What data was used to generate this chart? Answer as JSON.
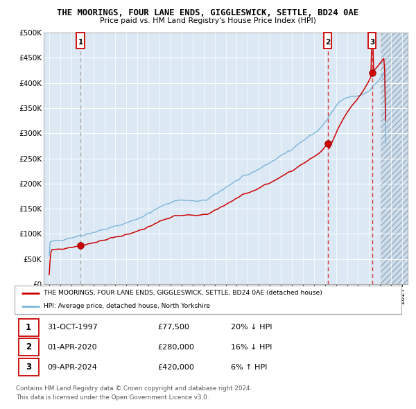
{
  "title": "THE MOORINGS, FOUR LANE ENDS, GIGGLESWICK, SETTLE, BD24 0AE",
  "subtitle": "Price paid vs. HM Land Registry's House Price Index (HPI)",
  "xlim": [
    1994.5,
    2027.5
  ],
  "ylim": [
    0,
    500000
  ],
  "yticks": [
    0,
    50000,
    100000,
    150000,
    200000,
    250000,
    300000,
    350000,
    400000,
    450000,
    500000
  ],
  "ytick_labels": [
    "£0",
    "£50K",
    "£100K",
    "£150K",
    "£200K",
    "£250K",
    "£300K",
    "£350K",
    "£400K",
    "£450K",
    "£500K"
  ],
  "hpi_color": "#7ab4d8",
  "price_color": "#cc0000",
  "bg_color": "#dce9f5",
  "grid_color": "#ffffff",
  "vline1_color": "#aaaaaa",
  "vline23_color": "#dd3333",
  "sale_years": [
    1997.833,
    2020.25,
    2024.27
  ],
  "sale_prices": [
    77500,
    280000,
    420000
  ],
  "sale_labels": [
    "1",
    "2",
    "3"
  ],
  "future_start": 2025.0,
  "legend_line1": "THE MOORINGS, FOUR LANE ENDS, GIGGLESWICK, SETTLE, BD24 0AE (detached house)",
  "legend_line2": "HPI: Average price, detached house, North Yorkshire",
  "table_rows": [
    {
      "num": "1",
      "date": "31-OCT-1997",
      "price": "£77,500",
      "hpi": "20% ↓ HPI"
    },
    {
      "num": "2",
      "date": "01-APR-2020",
      "price": "£280,000",
      "hpi": "16% ↓ HPI"
    },
    {
      "num": "3",
      "date": "09-APR-2024",
      "price": "£420,000",
      "hpi": "6% ↑ HPI"
    }
  ],
  "footnote1": "Contains HM Land Registry data © Crown copyright and database right 2024.",
  "footnote2": "This data is licensed under the Open Government Licence v3.0."
}
